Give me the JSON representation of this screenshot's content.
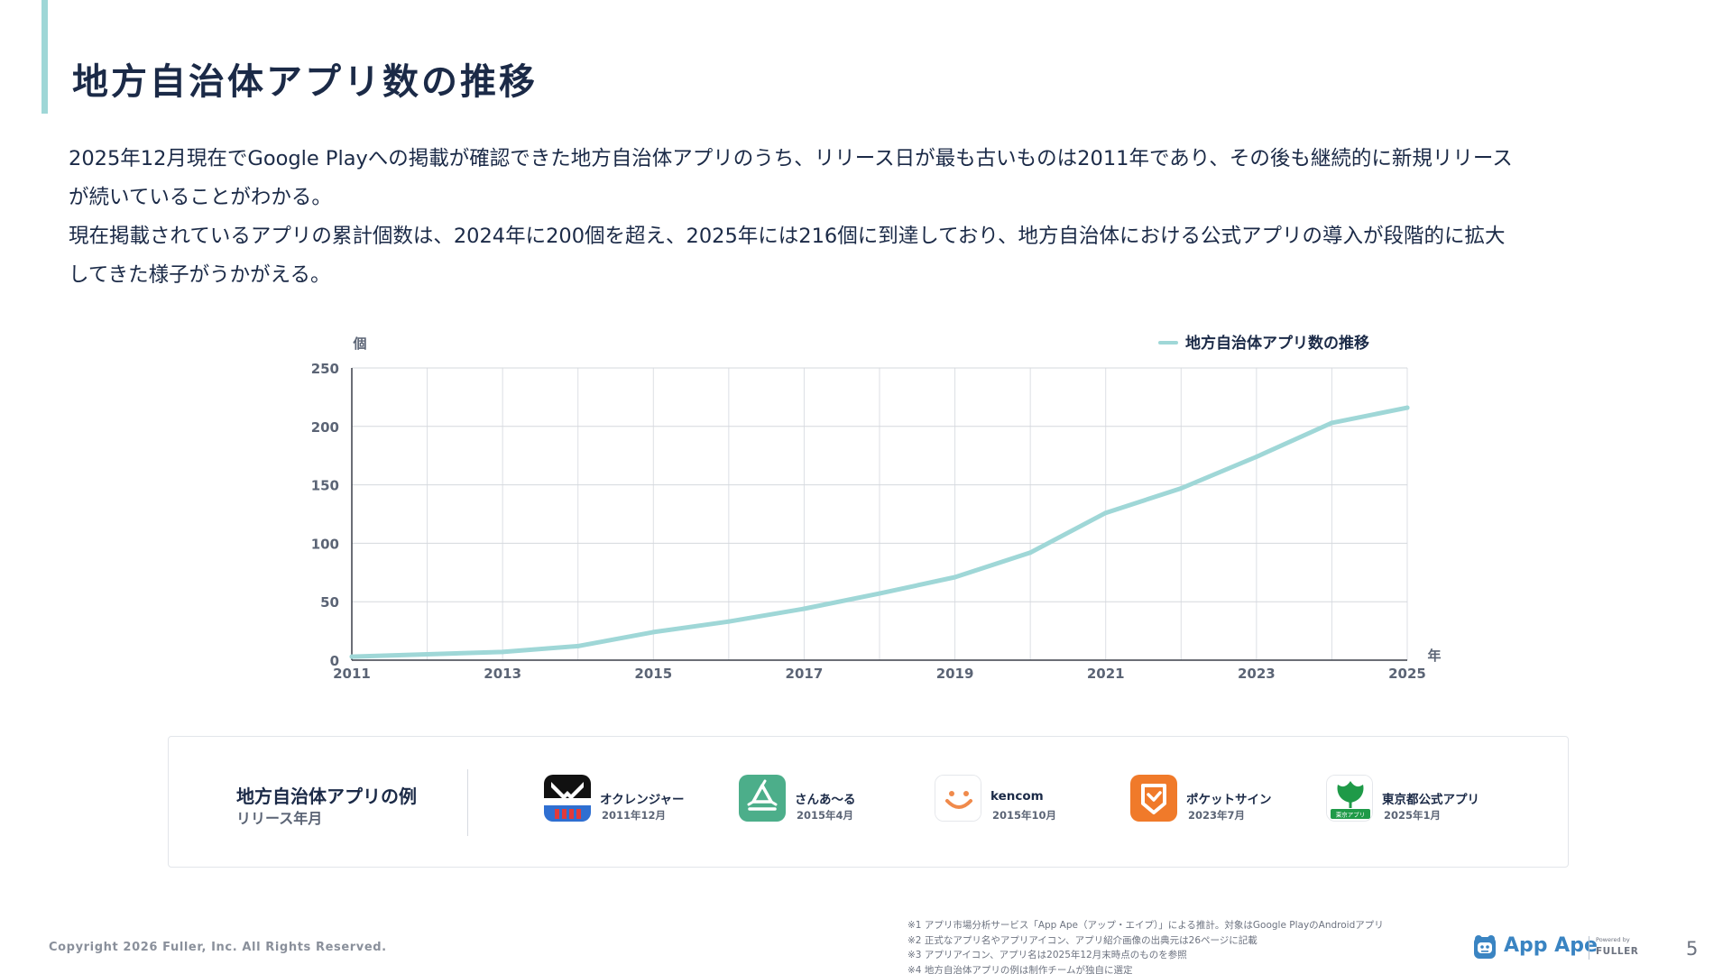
{
  "title": "地方自治体アプリ数の推移",
  "description": {
    "line1": "2025年12月現在でGoogle Playへの掲載が確認できた地方自治体アプリのうち、リリース日が最も古いものは2011年であり、その後も継続的に新規リリース",
    "line2": "が続いていることがわかる。",
    "line3": "現在掲載されているアプリの累計個数は、2024年に200個を超え、2025年には216個に到達しており、地方自治体における公式アプリの導入が段階的に拡大",
    "line4": "してきた様子がうかがえる。"
  },
  "chart_data": {
    "type": "line",
    "ylabel": "個",
    "xlabel": "年",
    "x": [
      2011,
      2012,
      2013,
      2014,
      2015,
      2016,
      2017,
      2018,
      2019,
      2020,
      2021,
      2022,
      2023,
      2024,
      2025
    ],
    "xticks": [
      "2011",
      "2013",
      "2015",
      "2017",
      "2019",
      "2021",
      "2023",
      "2025"
    ],
    "yticks": [
      0,
      50,
      100,
      150,
      200,
      250
    ],
    "xlim": [
      2011,
      2025
    ],
    "ylim": [
      0,
      250
    ],
    "grid": true,
    "legend_position": "top-right",
    "series": [
      {
        "name": "地方自治体アプリ数の推移",
        "color": "#9fd7d7",
        "values": [
          3,
          5,
          7,
          12,
          24,
          33,
          44,
          57,
          71,
          92,
          126,
          147,
          174,
          203,
          216
        ]
      }
    ]
  },
  "examples": {
    "title": "地方自治体アプリの例",
    "subtitle": "リリース年月",
    "apps": [
      {
        "name": "オクレンジャー",
        "date": "2011年12月",
        "icon": "okuranger-icon"
      },
      {
        "name": "さんあ〜る",
        "date": "2015年4月",
        "icon": "recycle-icon"
      },
      {
        "name": "kencom",
        "date": "2015年10月",
        "icon": "smile-icon"
      },
      {
        "name": "ポケットサイン",
        "date": "2023年7月",
        "icon": "pocketsign-icon"
      },
      {
        "name": "東京都公式アプリ",
        "date": "2025年1月",
        "icon": "ginkgo-icon",
        "icon_text": "東京アプリ"
      }
    ]
  },
  "footer": {
    "copyright": "Copyright 2026 Fuller, Inc. All Rights Reserved.",
    "notes": [
      "※1 アプリ市場分析サービス「App Ape（アップ・エイプ）」による推計。対象はGoogle PlayのAndroidアプリ",
      "※2 正式なアプリ名やアプリアイコン、アプリ紹介画像の出典元は26ページに記載",
      "※3 アプリアイコン、アプリ名は2025年12月末時点のものを参照",
      "※4 地方自治体アプリの例は制作チームが独自に選定"
    ],
    "brand": "App Ape",
    "powered_by": "Powered by",
    "company": "FULLER",
    "page_number": "5"
  },
  "colors": {
    "accent": "#9fd7d7",
    "title": "#1b2a47",
    "brand": "#3a84c2"
  }
}
